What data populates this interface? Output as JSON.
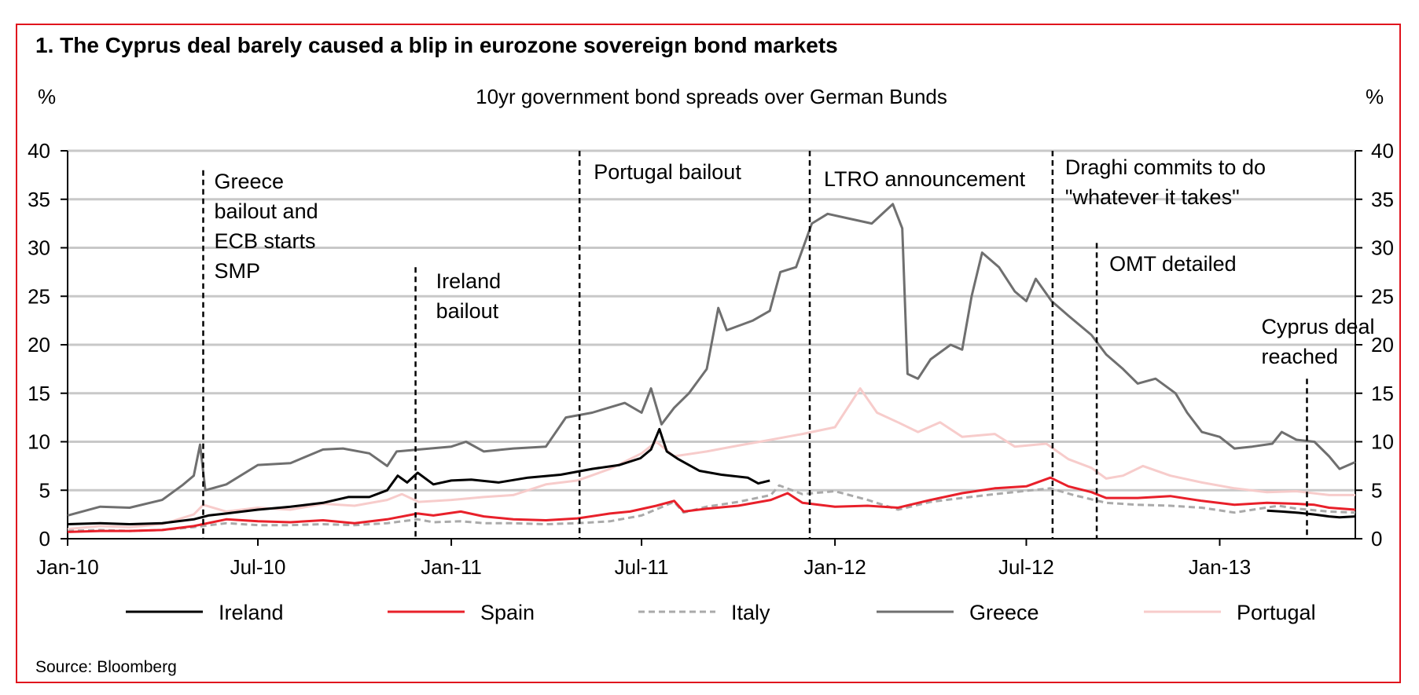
{
  "chart_data": {
    "type": "line",
    "title": "1. The Cyprus deal barely caused a blip in eurozone sovereign bond markets",
    "subtitle": "10yr government bond spreads over German Bunds",
    "y_unit_left": "%",
    "y_unit_right": "%",
    "ylim": [
      0,
      40
    ],
    "y_ticks": [
      "0",
      "5",
      "10",
      "15",
      "20",
      "25",
      "30",
      "35",
      "40"
    ],
    "x_ticks": [
      {
        "label": "Jan-10",
        "date": "2010-01-01"
      },
      {
        "label": "Jul-10",
        "date": "2010-07-01"
      },
      {
        "label": "Jan-11",
        "date": "2011-01-01"
      },
      {
        "label": "Jul-11",
        "date": "2011-07-01"
      },
      {
        "label": "Jan-12",
        "date": "2012-01-01"
      },
      {
        "label": "Jul-12",
        "date": "2012-07-01"
      },
      {
        "label": "Jan-13",
        "date": "2013-01-01"
      }
    ],
    "xlim": [
      "2010-01-01",
      "2013-05-10"
    ],
    "grid": true,
    "legend_placement": "bottom",
    "source": "Source: Bloomberg",
    "events": [
      {
        "date": "2010-05-10",
        "label": [
          "Greece",
          "bailout and",
          "ECB starts",
          "SMP"
        ],
        "y_top": 38
      },
      {
        "date": "2010-11-28",
        "label": [
          "Ireland",
          "bailout"
        ],
        "y_top": 28
      },
      {
        "date": "2011-05-03",
        "label": [
          "Portugal bailout"
        ],
        "y_top": 40
      },
      {
        "date": "2011-12-08",
        "label": [
          "LTRO announcement"
        ],
        "y_top": 40
      },
      {
        "date": "2012-07-26",
        "label": [
          "Draghi commits to do",
          "\"whatever it takes\""
        ],
        "y_top": 40
      },
      {
        "date": "2012-09-06",
        "label": [
          "OMT detailed"
        ],
        "y_top": 30.5
      },
      {
        "date": "2013-03-25",
        "label": [
          "Cyprus deal",
          "reached"
        ],
        "y_top": 16.5
      }
    ],
    "series": [
      {
        "name": "Ireland",
        "color": "#000000",
        "dash": "none",
        "points": [
          [
            "2010-01-01",
            1.5
          ],
          [
            "2010-02-01",
            1.6
          ],
          [
            "2010-03-01",
            1.5
          ],
          [
            "2010-04-01",
            1.6
          ],
          [
            "2010-05-01",
            2.0
          ],
          [
            "2010-05-15",
            2.4
          ],
          [
            "2010-06-01",
            2.6
          ],
          [
            "2010-07-01",
            3.0
          ],
          [
            "2010-08-01",
            3.3
          ],
          [
            "2010-09-01",
            3.7
          ],
          [
            "2010-09-25",
            4.3
          ],
          [
            "2010-10-15",
            4.3
          ],
          [
            "2010-11-01",
            5.0
          ],
          [
            "2010-11-11",
            6.5
          ],
          [
            "2010-11-20",
            5.8
          ],
          [
            "2010-11-30",
            6.8
          ],
          [
            "2010-12-15",
            5.6
          ],
          [
            "2011-01-01",
            6.0
          ],
          [
            "2011-01-20",
            6.1
          ],
          [
            "2011-02-15",
            5.8
          ],
          [
            "2011-03-15",
            6.3
          ],
          [
            "2011-04-15",
            6.6
          ],
          [
            "2011-05-15",
            7.2
          ],
          [
            "2011-06-10",
            7.6
          ],
          [
            "2011-06-30",
            8.3
          ],
          [
            "2011-07-10",
            9.2
          ],
          [
            "2011-07-18",
            11.3
          ],
          [
            "2011-07-25",
            9.0
          ],
          [
            "2011-08-05",
            8.2
          ],
          [
            "2011-08-25",
            7.0
          ],
          [
            "2011-09-15",
            6.6
          ],
          [
            "2011-10-10",
            6.3
          ],
          [
            "2011-10-20",
            5.7
          ],
          [
            "2011-10-31",
            6.0
          ],
          [
            "2013-02-15",
            2.9
          ],
          [
            "2013-03-01",
            2.8
          ],
          [
            "2013-03-15",
            2.7
          ],
          [
            "2013-04-01",
            2.5
          ],
          [
            "2013-04-15",
            2.3
          ],
          [
            "2013-04-25",
            2.2
          ],
          [
            "2013-05-10",
            2.3
          ]
        ]
      },
      {
        "name": "Spain",
        "color": "#e8202a",
        "dash": "none",
        "points": [
          [
            "2010-01-01",
            0.7
          ],
          [
            "2010-02-01",
            0.8
          ],
          [
            "2010-03-01",
            0.8
          ],
          [
            "2010-04-01",
            0.9
          ],
          [
            "2010-05-01",
            1.3
          ],
          [
            "2010-06-01",
            2.0
          ],
          [
            "2010-07-01",
            1.8
          ],
          [
            "2010-08-01",
            1.7
          ],
          [
            "2010-09-01",
            1.9
          ],
          [
            "2010-10-01",
            1.6
          ],
          [
            "2010-11-01",
            2.0
          ],
          [
            "2010-11-30",
            2.6
          ],
          [
            "2010-12-15",
            2.4
          ],
          [
            "2011-01-10",
            2.8
          ],
          [
            "2011-02-01",
            2.3
          ],
          [
            "2011-03-01",
            2.0
          ],
          [
            "2011-04-01",
            1.9
          ],
          [
            "2011-05-01",
            2.1
          ],
          [
            "2011-06-01",
            2.6
          ],
          [
            "2011-06-20",
            2.8
          ],
          [
            "2011-07-15",
            3.4
          ],
          [
            "2011-08-01",
            3.9
          ],
          [
            "2011-08-10",
            2.8
          ],
          [
            "2011-09-01",
            3.1
          ],
          [
            "2011-10-01",
            3.4
          ],
          [
            "2011-11-01",
            4.0
          ],
          [
            "2011-11-17",
            4.7
          ],
          [
            "2011-12-01",
            3.7
          ],
          [
            "2012-01-01",
            3.3
          ],
          [
            "2012-02-01",
            3.4
          ],
          [
            "2012-03-01",
            3.2
          ],
          [
            "2012-04-01",
            4.0
          ],
          [
            "2012-05-01",
            4.7
          ],
          [
            "2012-06-01",
            5.2
          ],
          [
            "2012-07-01",
            5.4
          ],
          [
            "2012-07-24",
            6.3
          ],
          [
            "2012-08-10",
            5.4
          ],
          [
            "2012-09-01",
            4.8
          ],
          [
            "2012-09-15",
            4.2
          ],
          [
            "2012-10-15",
            4.2
          ],
          [
            "2012-11-15",
            4.4
          ],
          [
            "2012-12-15",
            3.9
          ],
          [
            "2013-01-15",
            3.5
          ],
          [
            "2013-02-15",
            3.7
          ],
          [
            "2013-03-15",
            3.6
          ],
          [
            "2013-04-01",
            3.5
          ],
          [
            "2013-04-15",
            3.2
          ],
          [
            "2013-05-10",
            3.0
          ]
        ]
      },
      {
        "name": "Italy",
        "color": "#aaaaaa",
        "dash": "8,5",
        "points": [
          [
            "2010-01-01",
            0.8
          ],
          [
            "2010-02-01",
            0.9
          ],
          [
            "2010-03-01",
            0.8
          ],
          [
            "2010-04-01",
            0.9
          ],
          [
            "2010-05-01",
            1.2
          ],
          [
            "2010-06-01",
            1.6
          ],
          [
            "2010-07-01",
            1.4
          ],
          [
            "2010-08-01",
            1.4
          ],
          [
            "2010-09-01",
            1.5
          ],
          [
            "2010-10-01",
            1.4
          ],
          [
            "2010-11-01",
            1.6
          ],
          [
            "2010-11-30",
            2.0
          ],
          [
            "2010-12-15",
            1.7
          ],
          [
            "2011-01-10",
            1.8
          ],
          [
            "2011-02-01",
            1.6
          ],
          [
            "2011-03-01",
            1.6
          ],
          [
            "2011-04-01",
            1.5
          ],
          [
            "2011-05-01",
            1.6
          ],
          [
            "2011-06-01",
            1.8
          ],
          [
            "2011-07-01",
            2.4
          ],
          [
            "2011-08-01",
            3.8
          ],
          [
            "2011-08-10",
            2.7
          ],
          [
            "2011-09-01",
            3.3
          ],
          [
            "2011-10-01",
            3.8
          ],
          [
            "2011-11-01",
            4.5
          ],
          [
            "2011-11-09",
            5.5
          ],
          [
            "2011-12-01",
            4.6
          ],
          [
            "2012-01-01",
            4.9
          ],
          [
            "2012-02-01",
            4.0
          ],
          [
            "2012-03-01",
            3.0
          ],
          [
            "2012-04-01",
            3.8
          ],
          [
            "2012-05-01",
            4.2
          ],
          [
            "2012-06-01",
            4.6
          ],
          [
            "2012-07-24",
            5.2
          ],
          [
            "2012-08-15",
            4.5
          ],
          [
            "2012-09-15",
            3.7
          ],
          [
            "2012-10-15",
            3.5
          ],
          [
            "2012-11-15",
            3.4
          ],
          [
            "2012-12-15",
            3.2
          ],
          [
            "2013-01-15",
            2.7
          ],
          [
            "2013-02-26",
            3.4
          ],
          [
            "2013-03-15",
            3.1
          ],
          [
            "2013-04-15",
            2.8
          ],
          [
            "2013-05-10",
            2.7
          ]
        ]
      },
      {
        "name": "Greece",
        "color": "#6f6f6f",
        "dash": "none",
        "points": [
          [
            "2010-01-01",
            2.4
          ],
          [
            "2010-02-01",
            3.3
          ],
          [
            "2010-03-01",
            3.2
          ],
          [
            "2010-04-01",
            4.0
          ],
          [
            "2010-04-20",
            5.5
          ],
          [
            "2010-05-01",
            6.5
          ],
          [
            "2010-05-07",
            9.7
          ],
          [
            "2010-05-12",
            5.0
          ],
          [
            "2010-06-01",
            5.6
          ],
          [
            "2010-07-01",
            7.6
          ],
          [
            "2010-08-01",
            7.8
          ],
          [
            "2010-09-01",
            9.2
          ],
          [
            "2010-09-20",
            9.3
          ],
          [
            "2010-10-15",
            8.8
          ],
          [
            "2010-11-01",
            7.5
          ],
          [
            "2010-11-10",
            9.0
          ],
          [
            "2010-12-01",
            9.2
          ],
          [
            "2011-01-01",
            9.5
          ],
          [
            "2011-01-15",
            10.0
          ],
          [
            "2011-02-01",
            9.0
          ],
          [
            "2011-03-01",
            9.3
          ],
          [
            "2011-04-01",
            9.5
          ],
          [
            "2011-04-20",
            12.5
          ],
          [
            "2011-05-15",
            13.0
          ],
          [
            "2011-06-15",
            14.0
          ],
          [
            "2011-07-01",
            13.0
          ],
          [
            "2011-07-10",
            15.5
          ],
          [
            "2011-07-20",
            11.8
          ],
          [
            "2011-08-01",
            13.5
          ],
          [
            "2011-08-15",
            15.0
          ],
          [
            "2011-09-01",
            17.5
          ],
          [
            "2011-09-12",
            23.8
          ],
          [
            "2011-09-20",
            21.5
          ],
          [
            "2011-10-15",
            22.5
          ],
          [
            "2011-10-31",
            23.5
          ],
          [
            "2011-11-10",
            27.5
          ],
          [
            "2011-11-25",
            28.0
          ],
          [
            "2011-12-10",
            32.5
          ],
          [
            "2011-12-25",
            33.5
          ],
          [
            "2012-01-15",
            33.0
          ],
          [
            "2012-02-05",
            32.5
          ],
          [
            "2012-02-25",
            34.5
          ],
          [
            "2012-03-05",
            32.0
          ],
          [
            "2012-03-10",
            17.0
          ],
          [
            "2012-03-20",
            16.5
          ],
          [
            "2012-04-01",
            18.5
          ],
          [
            "2012-04-20",
            20.0
          ],
          [
            "2012-05-01",
            19.5
          ],
          [
            "2012-05-10",
            25.0
          ],
          [
            "2012-05-20",
            29.5
          ],
          [
            "2012-06-05",
            28.0
          ],
          [
            "2012-06-20",
            25.5
          ],
          [
            "2012-07-01",
            24.5
          ],
          [
            "2012-07-10",
            26.8
          ],
          [
            "2012-07-25",
            24.5
          ],
          [
            "2012-08-10",
            23.0
          ],
          [
            "2012-09-01",
            21.0
          ],
          [
            "2012-09-15",
            19.0
          ],
          [
            "2012-10-01",
            17.5
          ],
          [
            "2012-10-15",
            16.0
          ],
          [
            "2012-11-01",
            16.5
          ],
          [
            "2012-11-20",
            15.0
          ],
          [
            "2012-12-01",
            13.0
          ],
          [
            "2012-12-15",
            11.0
          ],
          [
            "2013-01-01",
            10.5
          ],
          [
            "2013-01-15",
            9.3
          ],
          [
            "2013-02-01",
            9.5
          ],
          [
            "2013-02-20",
            9.8
          ],
          [
            "2013-03-01",
            11.0
          ],
          [
            "2013-03-15",
            10.2
          ],
          [
            "2013-04-01",
            10.0
          ],
          [
            "2013-04-15",
            8.5
          ],
          [
            "2013-04-25",
            7.2
          ],
          [
            "2013-05-10",
            7.9
          ]
        ]
      },
      {
        "name": "Portugal",
        "color": "#f7cccb",
        "dash": "none",
        "points": [
          [
            "2010-01-01",
            1.0
          ],
          [
            "2010-02-01",
            1.3
          ],
          [
            "2010-03-01",
            1.2
          ],
          [
            "2010-04-01",
            1.5
          ],
          [
            "2010-05-01",
            2.5
          ],
          [
            "2010-05-10",
            3.5
          ],
          [
            "2010-06-01",
            2.8
          ],
          [
            "2010-07-01",
            3.2
          ],
          [
            "2010-08-01",
            3.0
          ],
          [
            "2010-09-01",
            3.6
          ],
          [
            "2010-10-01",
            3.4
          ],
          [
            "2010-11-01",
            4.0
          ],
          [
            "2010-11-15",
            4.6
          ],
          [
            "2010-12-01",
            3.8
          ],
          [
            "2011-01-01",
            4.0
          ],
          [
            "2011-02-01",
            4.3
          ],
          [
            "2011-03-01",
            4.5
          ],
          [
            "2011-04-01",
            5.6
          ],
          [
            "2011-05-01",
            6.0
          ],
          [
            "2011-06-01",
            7.2
          ],
          [
            "2011-07-01",
            8.8
          ],
          [
            "2011-07-15",
            10.0
          ],
          [
            "2011-08-01",
            8.5
          ],
          [
            "2011-09-01",
            9.0
          ],
          [
            "2011-10-01",
            9.6
          ],
          [
            "2011-11-01",
            10.2
          ],
          [
            "2011-12-01",
            10.8
          ],
          [
            "2012-01-01",
            11.5
          ],
          [
            "2012-01-25",
            15.5
          ],
          [
            "2012-02-10",
            13.0
          ],
          [
            "2012-03-01",
            12.0
          ],
          [
            "2012-03-20",
            11.0
          ],
          [
            "2012-04-10",
            12.0
          ],
          [
            "2012-05-01",
            10.5
          ],
          [
            "2012-06-01",
            10.8
          ],
          [
            "2012-06-20",
            9.5
          ],
          [
            "2012-07-20",
            9.8
          ],
          [
            "2012-08-10",
            8.2
          ],
          [
            "2012-09-01",
            7.3
          ],
          [
            "2012-09-15",
            6.2
          ],
          [
            "2012-10-01",
            6.5
          ],
          [
            "2012-10-20",
            7.5
          ],
          [
            "2012-11-15",
            6.5
          ],
          [
            "2012-12-15",
            5.8
          ],
          [
            "2013-01-15",
            5.2
          ],
          [
            "2013-02-15",
            4.8
          ],
          [
            "2013-03-15",
            4.9
          ],
          [
            "2013-04-15",
            4.5
          ],
          [
            "2013-05-10",
            4.5
          ]
        ]
      }
    ]
  }
}
